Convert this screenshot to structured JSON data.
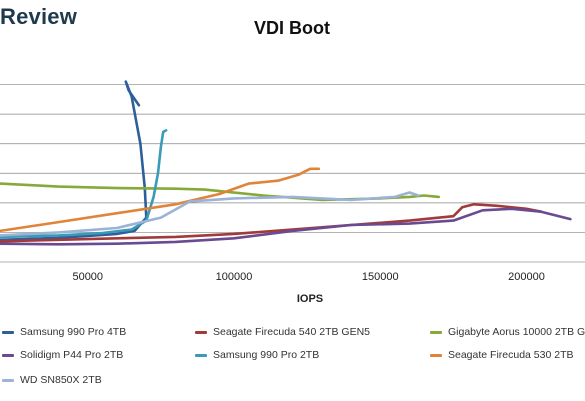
{
  "brand": "Review",
  "chart_data": {
    "type": "line",
    "title": "VDI Boot",
    "xlabel": "IOPS",
    "ylabel": "",
    "xlim": [
      20000,
      220000
    ],
    "ylim": [
      0,
      7
    ],
    "xticks": [
      50000,
      100000,
      150000,
      200000
    ],
    "xtick_labels": [
      "50000",
      "100000",
      "150000",
      "200000"
    ],
    "yticks": [
      1,
      2,
      3,
      4,
      5,
      6
    ],
    "grid": true,
    "legend_position": "bottom",
    "series": [
      {
        "name": "Samsung 990 Pro 4TB",
        "color": "#2e5f9b",
        "points": [
          [
            20000,
            0.75
          ],
          [
            30000,
            0.78
          ],
          [
            40000,
            0.82
          ],
          [
            50000,
            0.88
          ],
          [
            60000,
            0.95
          ],
          [
            66000,
            1.05
          ],
          [
            70000,
            1.5
          ],
          [
            69500,
            2.5
          ],
          [
            68000,
            4.0
          ],
          [
            65000,
            5.6
          ],
          [
            63000,
            6.1
          ],
          [
            64000,
            5.8
          ],
          [
            67500,
            5.3
          ]
        ]
      },
      {
        "name": "Seagate Firecuda 540 2TB GEN5",
        "color": "#a33a3a",
        "points": [
          [
            20000,
            0.7
          ],
          [
            40000,
            0.75
          ],
          [
            60000,
            0.8
          ],
          [
            80000,
            0.85
          ],
          [
            100000,
            0.95
          ],
          [
            120000,
            1.1
          ],
          [
            140000,
            1.25
          ],
          [
            160000,
            1.4
          ],
          [
            175000,
            1.55
          ],
          [
            178000,
            1.85
          ],
          [
            182000,
            1.95
          ],
          [
            190000,
            1.9
          ],
          [
            200000,
            1.8
          ],
          [
            205000,
            1.7
          ]
        ]
      },
      {
        "name": "Gigabyte Aorus 10000 2TB G",
        "color": "#86a93a",
        "points": [
          [
            20000,
            2.65
          ],
          [
            40000,
            2.55
          ],
          [
            60000,
            2.5
          ],
          [
            80000,
            2.48
          ],
          [
            90000,
            2.45
          ],
          [
            110000,
            2.25
          ],
          [
            130000,
            2.1
          ],
          [
            150000,
            2.15
          ],
          [
            160000,
            2.2
          ],
          [
            165000,
            2.25
          ],
          [
            170000,
            2.2
          ]
        ]
      },
      {
        "name": "Solidigm P44 Pro 2TB",
        "color": "#6a4a91",
        "points": [
          [
            20000,
            0.62
          ],
          [
            40000,
            0.6
          ],
          [
            60000,
            0.62
          ],
          [
            80000,
            0.68
          ],
          [
            100000,
            0.8
          ],
          [
            120000,
            1.05
          ],
          [
            140000,
            1.25
          ],
          [
            160000,
            1.3
          ],
          [
            175000,
            1.4
          ],
          [
            185000,
            1.75
          ],
          [
            195000,
            1.8
          ],
          [
            205000,
            1.7
          ],
          [
            215000,
            1.45
          ]
        ]
      },
      {
        "name": "Samsung 990 Pro 2TB",
        "color": "#3a9ab8",
        "points": [
          [
            20000,
            0.85
          ],
          [
            40000,
            0.9
          ],
          [
            55000,
            0.98
          ],
          [
            65000,
            1.1
          ],
          [
            70000,
            1.4
          ],
          [
            72500,
            2.2
          ],
          [
            74000,
            3.0
          ],
          [
            75000,
            3.9
          ],
          [
            75800,
            4.4
          ],
          [
            76800,
            4.45
          ]
        ]
      },
      {
        "name": "Seagate Firecuda 530 2TB",
        "color": "#e0843a",
        "points": [
          [
            20000,
            1.05
          ],
          [
            40000,
            1.35
          ],
          [
            60000,
            1.65
          ],
          [
            80000,
            1.95
          ],
          [
            95000,
            2.3
          ],
          [
            105000,
            2.65
          ],
          [
            115000,
            2.75
          ],
          [
            122000,
            2.95
          ],
          [
            126000,
            3.15
          ],
          [
            129000,
            3.15
          ]
        ]
      },
      {
        "name": "WD SN850X 2TB",
        "color": "#9ab3d6",
        "points": [
          [
            20000,
            0.9
          ],
          [
            40000,
            1.0
          ],
          [
            60000,
            1.15
          ],
          [
            75000,
            1.5
          ],
          [
            85000,
            2.05
          ],
          [
            100000,
            2.15
          ],
          [
            120000,
            2.2
          ],
          [
            140000,
            2.1
          ],
          [
            155000,
            2.2
          ],
          [
            160000,
            2.35
          ],
          [
            163000,
            2.25
          ]
        ]
      }
    ]
  }
}
